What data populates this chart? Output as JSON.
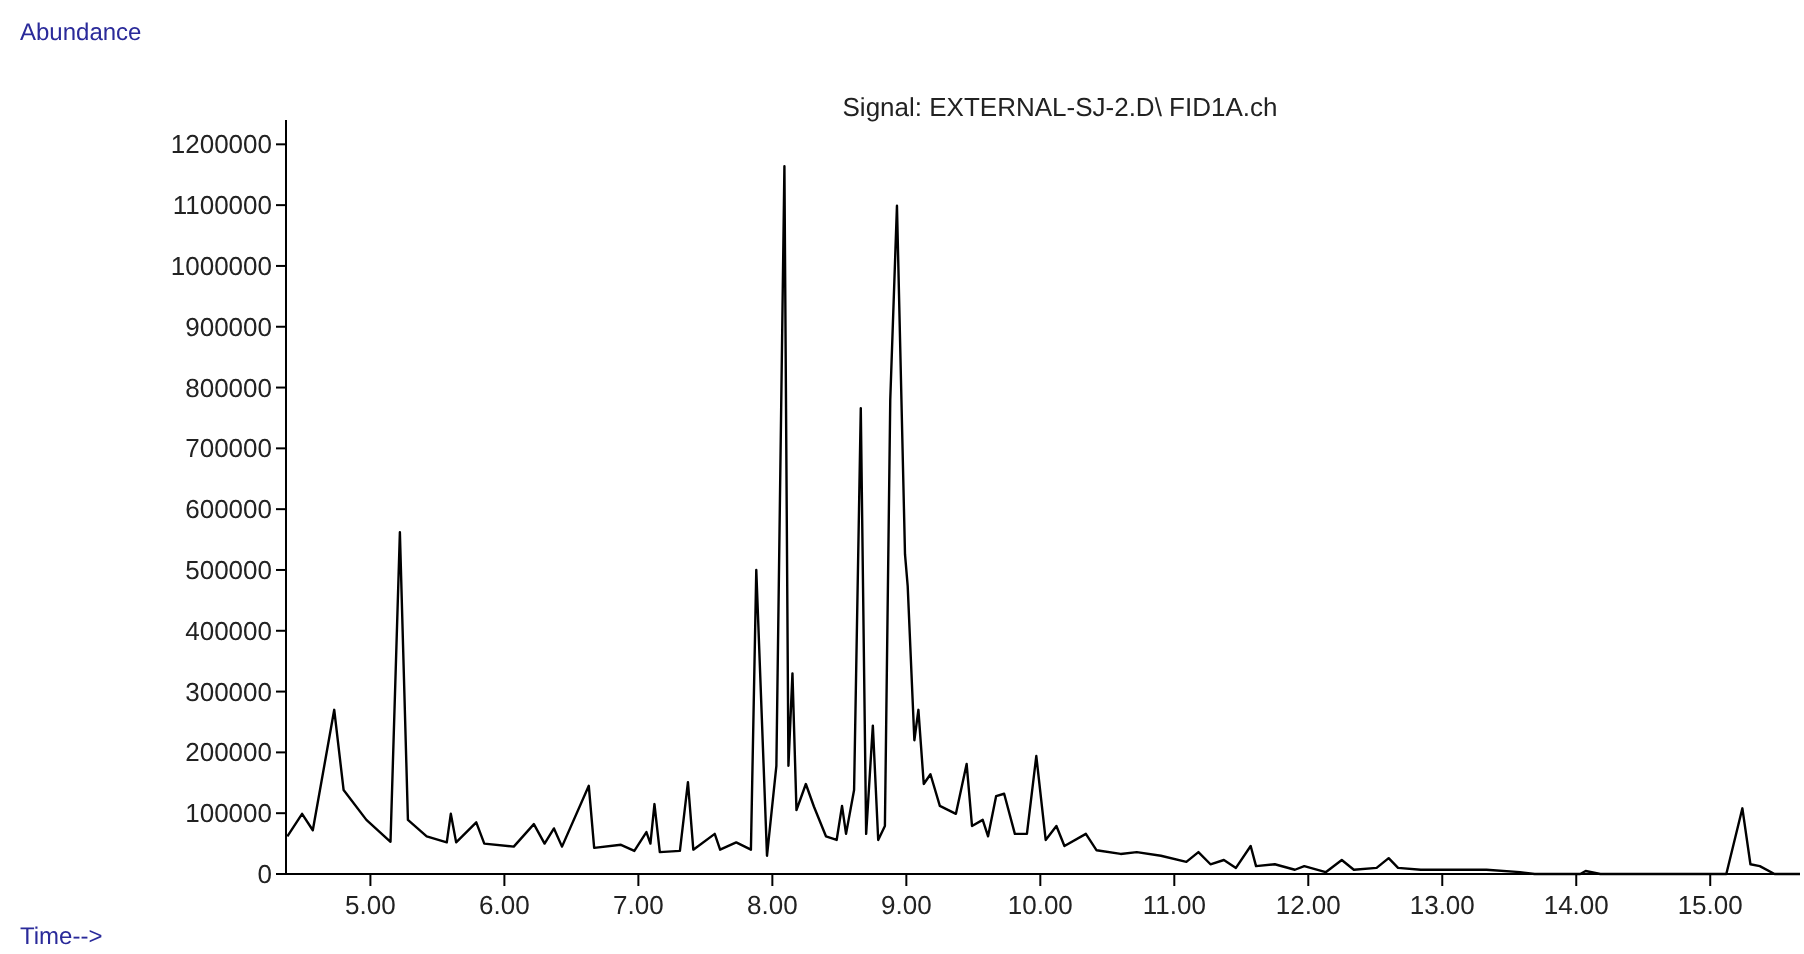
{
  "chart_data": {
    "type": "line",
    "title": "Signal: EXTERNAL-SJ-2.D\\ FID1A.ch",
    "xlabel": "Time-->",
    "ylabel": "Abundance",
    "x": [
      4.38,
      4.49,
      4.57,
      4.73,
      4.8,
      4.97,
      5.15,
      5.22,
      5.28,
      5.42,
      5.57,
      5.6,
      5.64,
      5.79,
      5.85,
      6.07,
      6.22,
      6.3,
      6.37,
      6.43,
      6.63,
      6.67,
      6.87,
      6.97,
      7.06,
      7.09,
      7.12,
      7.16,
      7.31,
      7.37,
      7.41,
      7.57,
      7.61,
      7.73,
      7.84,
      7.88,
      7.96,
      8.03,
      8.09,
      8.12,
      8.15,
      8.18,
      8.25,
      8.31,
      8.4,
      8.48,
      8.52,
      8.55,
      8.61,
      8.66,
      8.7,
      8.75,
      8.79,
      8.84,
      8.88,
      8.93,
      8.99,
      9.01,
      9.06,
      9.09,
      9.13,
      9.18,
      9.25,
      9.37,
      9.45,
      9.49,
      9.57,
      9.61,
      9.67,
      9.73,
      9.81,
      9.9,
      9.97,
      10.04,
      10.12,
      10.18,
      10.34,
      10.42,
      10.6,
      10.72,
      10.9,
      11.09,
      11.18,
      11.27,
      11.37,
      11.46,
      11.57,
      11.61,
      11.75,
      11.9,
      11.97,
      12.13,
      12.25,
      12.34,
      12.51,
      12.6,
      12.67,
      12.84,
      13.33,
      13.58,
      13.69,
      14.03,
      14.07,
      14.18,
      15.12,
      15.24,
      15.3,
      15.37,
      15.48,
      15.67
    ],
    "series": [
      {
        "color": "#000000",
        "values": [
          62000,
          99000,
          72000,
          270000,
          138000,
          89000,
          53000,
          562000,
          89000,
          62000,
          52000,
          99000,
          52000,
          85000,
          50000,
          45000,
          82000,
          50000,
          75000,
          45000,
          145000,
          43000,
          48000,
          38000,
          69000,
          50000,
          115000,
          36000,
          38000,
          151000,
          40000,
          66000,
          40000,
          52000,
          40000,
          500000,
          30000,
          178000,
          1164000,
          178000,
          330000,
          105000,
          148000,
          111000,
          62000,
          56000,
          112000,
          66000,
          138000,
          766000,
          66000,
          244000,
          56000,
          79000,
          780000,
          1099000,
          526000,
          474000,
          220000,
          270000,
          148000,
          164000,
          112000,
          99000,
          181000,
          79000,
          89000,
          62000,
          128000,
          132000,
          66000,
          66000,
          194000,
          56000,
          79000,
          46000,
          66000,
          39000,
          33000,
          36000,
          30000,
          20000,
          36000,
          16000,
          23000,
          10000,
          46000,
          13000,
          16000,
          7000,
          13000,
          3000,
          23000,
          7000,
          10000,
          26000,
          10000,
          7000,
          7000,
          3000,
          0,
          0,
          5000,
          0,
          0,
          108000,
          16000,
          13000,
          0,
          0
        ]
      }
    ],
    "xlim": [
      4.37,
      15.67
    ],
    "xticks": [
      {
        "value": 5,
        "label": "5.00"
      },
      {
        "value": 6,
        "label": "6.00"
      },
      {
        "value": 7,
        "label": "7.00"
      },
      {
        "value": 8,
        "label": "8.00"
      },
      {
        "value": 9,
        "label": "9.00"
      },
      {
        "value": 10,
        "label": "10.00"
      },
      {
        "value": 11,
        "label": "11.00"
      },
      {
        "value": 12,
        "label": "12.00"
      },
      {
        "value": 13,
        "label": "13.00"
      },
      {
        "value": 14,
        "label": "14.00"
      },
      {
        "value": 15,
        "label": "15.00"
      }
    ],
    "ylim": [
      0,
      1240000
    ],
    "yticks": [
      0,
      100000,
      200000,
      300000,
      400000,
      500000,
      600000,
      700000,
      800000,
      900000,
      1000000,
      1100000,
      1200000
    ],
    "grid": false,
    "marker": "none",
    "line_style": "solid"
  }
}
